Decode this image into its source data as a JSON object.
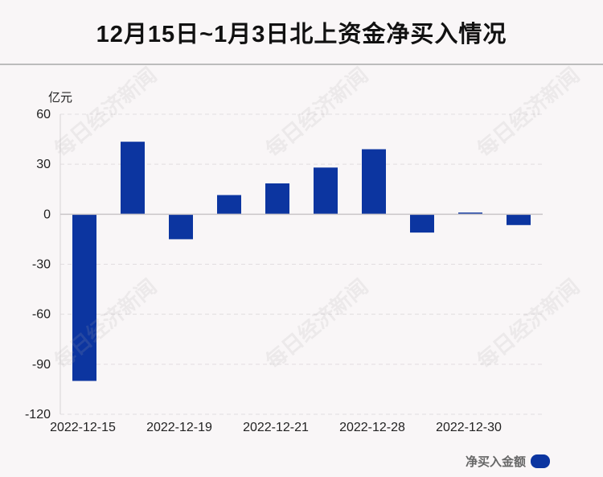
{
  "chart_data": {
    "type": "bar",
    "title": "12月15日~1月3日北上资金净买入情况",
    "ylabel": "亿元",
    "ylim": [
      -120,
      60
    ],
    "yticks": [
      60,
      30,
      0,
      -30,
      -60,
      -90,
      -120
    ],
    "categories": [
      "2022-12-15",
      "",
      "2022-12-19",
      "",
      "2022-12-21",
      "",
      "2022-12-28",
      "",
      "2022-12-30",
      ""
    ],
    "xtick_labels": [
      "2022-12-15",
      "2022-12-19",
      "2022-12-21",
      "2022-12-28",
      "2022-12-30"
    ],
    "series": [
      {
        "name": "净买入金额",
        "values": [
          -100,
          43.5,
          -15,
          11.5,
          18.5,
          28,
          39,
          -11,
          1,
          -6.5
        ]
      }
    ],
    "grid": true,
    "legend_position": "bottom-right",
    "bar_color": "#0c35a0"
  },
  "watermark_text": "每日经济新闻"
}
